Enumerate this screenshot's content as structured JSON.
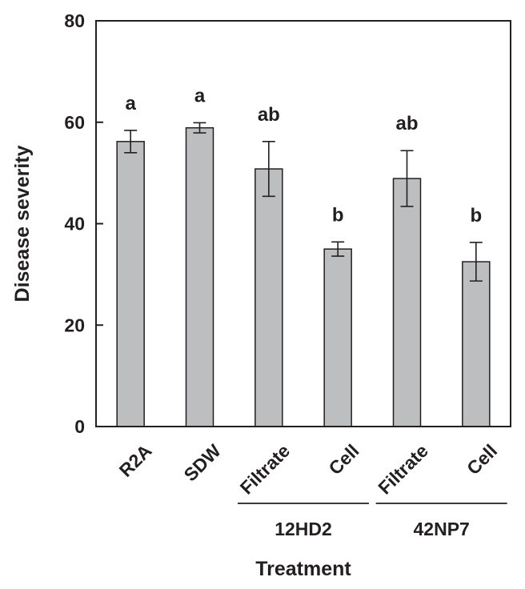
{
  "chart_data": {
    "type": "bar",
    "xlabel": "Treatment",
    "ylabel": "Disease severity",
    "ylim": [
      0,
      80
    ],
    "yticks": [
      0,
      20,
      40,
      60,
      80
    ],
    "grid": false,
    "bar_color": "#bcbec0",
    "categories": [
      "R2A",
      "SDW",
      "Filtrate",
      "Cell",
      "Filtrate",
      "Cell"
    ],
    "values": [
      56.2,
      58.9,
      50.8,
      35.0,
      48.9,
      32.5
    ],
    "errors": [
      2.2,
      1.0,
      5.4,
      1.4,
      5.5,
      3.8
    ],
    "significance": [
      "a",
      "a",
      "ab",
      "b",
      "ab",
      "b"
    ],
    "groups": [
      {
        "label": "12HD2",
        "start": 2,
        "end": 3
      },
      {
        "label": "42NP7",
        "start": 4,
        "end": 5
      }
    ]
  }
}
